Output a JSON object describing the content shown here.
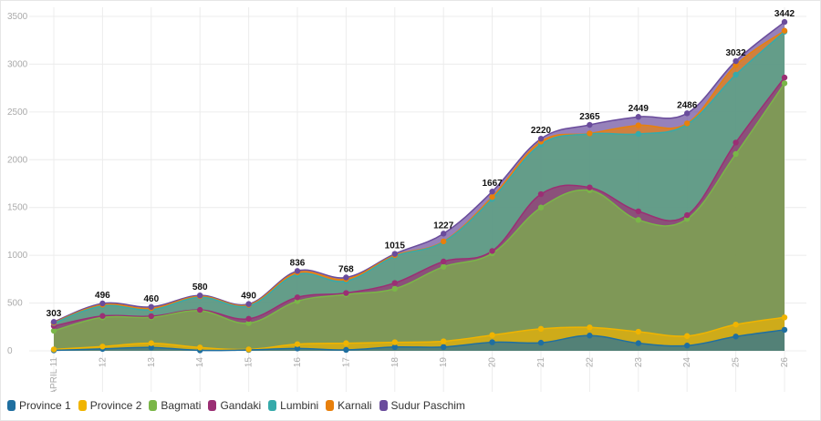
{
  "chart_data": {
    "type": "area",
    "stacked": true,
    "title": "",
    "xlabel": "",
    "ylabel": "",
    "ylim": [
      0,
      3500
    ],
    "yticks": [
      0,
      500,
      1000,
      1500,
      2000,
      2500,
      3000,
      3500
    ],
    "grid": true,
    "legend_position": "bottom-left",
    "categories": [
      "APRIL 11",
      "12",
      "13",
      "14",
      "15",
      "16",
      "17",
      "18",
      "19",
      "20",
      "21",
      "22",
      "23",
      "24",
      "25",
      "26"
    ],
    "totals": [
      303,
      496,
      460,
      580,
      490,
      836,
      768,
      1015,
      1227,
      1667,
      2220,
      2365,
      2449,
      2486,
      3032,
      3442
    ],
    "series": [
      {
        "name": "Province 1",
        "color": "#1f6fa0",
        "values": [
          5,
          20,
          35,
          5,
          10,
          25,
          10,
          40,
          40,
          90,
          85,
          160,
          80,
          55,
          150,
          220
        ]
      },
      {
        "name": "Province 2",
        "color": "#f0b400",
        "values": [
          10,
          25,
          45,
          30,
          5,
          45,
          70,
          50,
          60,
          75,
          145,
          85,
          120,
          100,
          125,
          130
        ]
      },
      {
        "name": "Bagmati",
        "color": "#7ab648",
        "values": [
          195,
          305,
          270,
          385,
          275,
          450,
          510,
          560,
          780,
          855,
          1270,
          1435,
          1170,
          1225,
          1785,
          2450
        ]
      },
      {
        "name": "Gandaki",
        "color": "#9b2f74",
        "values": [
          50,
          15,
          12,
          8,
          45,
          40,
          15,
          60,
          55,
          25,
          140,
          30,
          90,
          40,
          120,
          60
        ]
      },
      {
        "name": "Lumbini",
        "color": "#36aaaa",
        "values": [
          30,
          105,
          68,
          132,
          135,
          240,
          125,
          280,
          205,
          545,
          520,
          560,
          810,
          950,
          710,
          480
        ]
      },
      {
        "name": "Karnali",
        "color": "#e8800c",
        "values": [
          5,
          12,
          15,
          10,
          10,
          20,
          20,
          10,
          5,
          20,
          30,
          5,
          90,
          10,
          100,
          10
        ]
      },
      {
        "name": "Sudur Paschim",
        "color": "#6a4c9c",
        "values": [
          8,
          14,
          15,
          10,
          10,
          16,
          18,
          15,
          82,
          57,
          30,
          90,
          89,
          106,
          42,
          92
        ]
      }
    ]
  }
}
